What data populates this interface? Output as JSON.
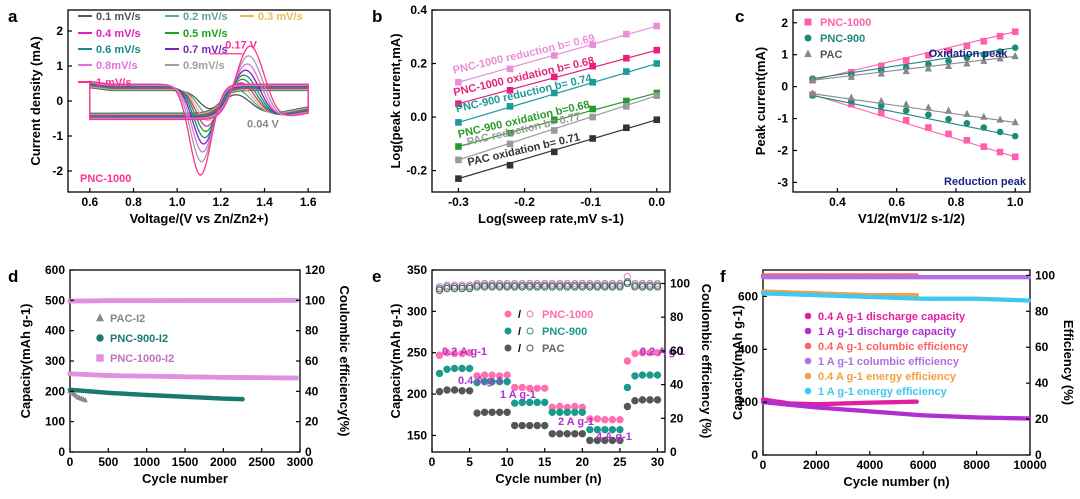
{
  "chart_data": [
    {
      "panel": "a",
      "type": "line",
      "subtype": "cyclic-voltammetry",
      "xlabel": "Voltage/(V vs Zn/Zn2+)",
      "ylabel": "Current density (mA)",
      "xlim": [
        0.5,
        1.7
      ],
      "ylim": [
        -2.6,
        2.6
      ],
      "xticks": [
        "0.6",
        "0.8",
        "1.0",
        "1.2",
        "1.4",
        "1.6"
      ],
      "yticks": [
        "-2",
        "-1",
        "0",
        "1",
        "2"
      ],
      "sample_label": "PNC-1000",
      "annotations": [
        "0.17 V",
        "0.04 V"
      ],
      "series": [
        {
          "name": "0.1 mV/s",
          "color": "#555555",
          "peak_ox": 0.18,
          "peak_red": -0.22
        },
        {
          "name": "0.2 mV/s",
          "color": "#5fa3a3",
          "peak_ox": 0.32,
          "peak_red": -0.42
        },
        {
          "name": "0.3 mV/s",
          "color": "#e0c050",
          "peak_ox": 0.45,
          "peak_red": -0.6
        },
        {
          "name": "0.4 mV/s",
          "color": "#e020c0",
          "peak_ox": 0.58,
          "peak_red": -0.78
        },
        {
          "name": "0.5 mV/s",
          "color": "#20a020",
          "peak_ox": 0.7,
          "peak_red": -0.95
        },
        {
          "name": "0.6 mV/s",
          "color": "#1a8a8a",
          "peak_ox": 0.84,
          "peak_red": -1.15
        },
        {
          "name": "0.7 mV/s",
          "color": "#8020c0",
          "peak_ox": 1.0,
          "peak_red": -1.35
        },
        {
          "name": "0.8mV/s",
          "color": "#e070e0",
          "peak_ox": 1.2,
          "peak_red": -1.6
        },
        {
          "name": "0.9mV/s",
          "color": "#a0a0a0",
          "peak_ox": 1.45,
          "peak_red": -1.9
        },
        {
          "name": "1 mV/s",
          "color": "#ff3090",
          "peak_ox": 1.75,
          "peak_red": -2.3
        }
      ]
    },
    {
      "panel": "b",
      "type": "scatter",
      "xlabel": "Log(sweep rate,mV s-1)",
      "ylabel": "Log(peak current,mA)",
      "xlim": [
        -0.34,
        0.02
      ],
      "ylim": [
        -0.28,
        0.4
      ],
      "xticks": [
        "-0.3",
        "-0.2",
        "-0.1",
        "0.0"
      ],
      "yticks": [
        "-0.2",
        "0.0",
        "0.2",
        "0.4"
      ],
      "x": [
        -0.3,
        -0.222,
        -0.155,
        -0.097,
        -0.046,
        0.0
      ],
      "series": [
        {
          "name": "PNC-1000 reduction b= 0.69",
          "color": "#e88fd8",
          "values": [
            0.13,
            0.18,
            0.23,
            0.27,
            0.31,
            0.34
          ]
        },
        {
          "name": "PNC-1000 oxidation b= 0.68",
          "color": "#e8207a",
          "values": [
            0.05,
            0.1,
            0.15,
            0.19,
            0.22,
            0.25
          ]
        },
        {
          "name": "PNC-900 reduction b= 0.74",
          "color": "#1a9a9a",
          "values": [
            -0.02,
            0.04,
            0.09,
            0.13,
            0.17,
            0.2
          ]
        },
        {
          "name": "PNC-900 oxidation b=0.68",
          "color": "#2a9a2a",
          "values": [
            -0.11,
            -0.06,
            -0.01,
            0.03,
            0.06,
            0.09
          ]
        },
        {
          "name": "PAC reduction b= 0.77",
          "color": "#9a9a9a",
          "values": [
            -0.16,
            -0.1,
            -0.05,
            0.0,
            0.04,
            0.08
          ]
        },
        {
          "name": "PAC oxidation b= 0.71",
          "color": "#333333",
          "values": [
            -0.23,
            -0.18,
            -0.13,
            -0.08,
            -0.04,
            -0.01
          ]
        }
      ]
    },
    {
      "panel": "c",
      "type": "scatter",
      "xlabel": "V1/2(mV1/2 s-1/2)",
      "ylabel": "Peak current(mA)",
      "xlim": [
        0.25,
        1.05
      ],
      "ylim": [
        -3.3,
        2.4
      ],
      "xticks": [
        "0.4",
        "0.6",
        "0.8",
        "1.0"
      ],
      "yticks": [
        "-3",
        "-2",
        "-1",
        "0",
        "1",
        "2"
      ],
      "x": [
        0.316,
        0.447,
        0.548,
        0.632,
        0.707,
        0.775,
        0.837,
        0.894,
        0.949,
        1.0
      ],
      "annotations": [
        "Oxidation peak",
        "Reduction peak"
      ],
      "series": [
        {
          "name": "PNC-1000",
          "color": "#ff5fae",
          "marker": "square",
          "ox": [
            0.2,
            0.45,
            0.65,
            0.82,
            0.98,
            1.12,
            1.28,
            1.42,
            1.58,
            1.72
          ],
          "red": [
            -0.25,
            -0.55,
            -0.82,
            -1.05,
            -1.28,
            -1.48,
            -1.68,
            -1.88,
            -2.05,
            -2.2
          ]
        },
        {
          "name": "PNC-900",
          "color": "#1a8a7a",
          "marker": "circle",
          "ox": [
            0.25,
            0.38,
            0.5,
            0.6,
            0.7,
            0.8,
            0.9,
            1.0,
            1.1,
            1.22
          ],
          "red": [
            -0.28,
            -0.45,
            -0.6,
            -0.75,
            -0.88,
            -1.02,
            -1.15,
            -1.28,
            -1.42,
            -1.55
          ]
        },
        {
          "name": "PAC",
          "color": "#888888",
          "marker": "triangle",
          "ox": [
            0.2,
            0.3,
            0.4,
            0.48,
            0.56,
            0.64,
            0.72,
            0.8,
            0.88,
            0.95
          ],
          "red": [
            -0.22,
            -0.35,
            -0.46,
            -0.56,
            -0.66,
            -0.76,
            -0.86,
            -0.95,
            -1.04,
            -1.12
          ]
        }
      ]
    },
    {
      "panel": "d",
      "type": "scatter",
      "xlabel": "Cycle number",
      "ylabel": "Capacity(mAh g-1)",
      "ylabel_right": "Coulombic efficiency(%)",
      "xlim": [
        0,
        3000
      ],
      "ylim": [
        0,
        600
      ],
      "ylim_right": [
        0,
        120
      ],
      "xticks": [
        "0",
        "500",
        "1000",
        "1500",
        "2000",
        "2500",
        "3000"
      ],
      "yticks": [
        "0",
        "100",
        "200",
        "300",
        "400",
        "500",
        "600"
      ],
      "yticks_right": [
        "0",
        "20",
        "40",
        "60",
        "80",
        "100",
        "120"
      ],
      "series": [
        {
          "name": "PAC-I2",
          "color": "#888888",
          "marker": "triangle",
          "cycles": [
            0,
            50,
            100,
            150,
            200
          ],
          "capacity": [
            200,
            190,
            180,
            175,
            170
          ]
        },
        {
          "name": "PNC-900-I2",
          "color": "#1a7a70",
          "marker": "circle",
          "cycles": [
            0,
            500,
            1000,
            1500,
            2000,
            2250
          ],
          "capacity": [
            205,
            195,
            188,
            182,
            176,
            174
          ]
        },
        {
          "name": "PNC-1000-I2",
          "color": "#e090e0",
          "marker": "square",
          "cycles": [
            0,
            500,
            1000,
            1500,
            2000,
            2500,
            2950
          ],
          "capacity": [
            258,
            252,
            250,
            248,
            246,
            245,
            244
          ]
        },
        {
          "name": "Coulombic efficiency",
          "color": "#e090e0",
          "axis": "right",
          "cycles": [
            0,
            500,
            1000,
            1500,
            2000,
            2500,
            2950
          ],
          "values": [
            99.5,
            99.8,
            99.8,
            99.9,
            99.9,
            99.9,
            100
          ]
        }
      ]
    },
    {
      "panel": "e",
      "type": "scatter",
      "xlabel": "Cycle number (n)",
      "ylabel": "Capacity(mAh g-1)",
      "ylabel_right": "Coulombic efficiency (%)",
      "xlim": [
        0,
        31
      ],
      "ylim": [
        130,
        350
      ],
      "ylim_right": [
        0,
        108
      ],
      "xticks": [
        "0",
        "5",
        "10",
        "15",
        "20",
        "25",
        "30"
      ],
      "yticks": [
        "150",
        "200",
        "250",
        "300",
        "350"
      ],
      "yticks_right": [
        "0",
        "20",
        "40",
        "60",
        "80",
        "100"
      ],
      "rate_labels": [
        "0.2 A g-1",
        "0.4 A g-1",
        "1 A g-1",
        "2 A g-1",
        "4 A g-1",
        "0.2 A g-1"
      ],
      "legend_separator": "/",
      "cycles": [
        1,
        2,
        3,
        4,
        5,
        6,
        7,
        8,
        9,
        10,
        11,
        12,
        13,
        14,
        15,
        16,
        17,
        18,
        19,
        20,
        21,
        22,
        23,
        24,
        25,
        26,
        27,
        28,
        29,
        30
      ],
      "series": [
        {
          "name": "PNC-1000",
          "color": "#ff70b0",
          "capacity": [
            247,
            250,
            249,
            249,
            250,
            222,
            223,
            223,
            222,
            223,
            208,
            208,
            207,
            207,
            207,
            184,
            185,
            184,
            185,
            184,
            170,
            170,
            169,
            169,
            169,
            240,
            249,
            250,
            250,
            250
          ],
          "ce": [
            98,
            99,
            99,
            99,
            99,
            100,
            100,
            100,
            100,
            100,
            100,
            100,
            100,
            100,
            100,
            100,
            100,
            100,
            100,
            100,
            100,
            100,
            100,
            100,
            100,
            104,
            100,
            100,
            100,
            100
          ]
        },
        {
          "name": "PNC-900",
          "color": "#1a9a8a",
          "capacity": [
            225,
            230,
            231,
            231,
            231,
            214,
            215,
            215,
            215,
            215,
            189,
            190,
            190,
            190,
            190,
            178,
            178,
            178,
            178,
            178,
            157,
            157,
            157,
            157,
            157,
            208,
            222,
            223,
            223,
            223
          ],
          "ce": [
            97,
            98,
            98,
            98,
            98,
            99,
            99,
            99,
            99,
            99,
            99,
            99,
            99,
            99,
            99,
            99,
            99,
            99,
            99,
            99,
            99,
            99,
            99,
            99,
            99,
            101,
            99,
            99,
            99,
            99
          ]
        },
        {
          "name": "PAC",
          "color": "#555555",
          "capacity": [
            203,
            205,
            205,
            204,
            204,
            177,
            178,
            178,
            178,
            178,
            162,
            162,
            162,
            162,
            162,
            152,
            152,
            152,
            152,
            152,
            144,
            144,
            144,
            144,
            144,
            185,
            192,
            193,
            193,
            193
          ],
          "ce": [
            96,
            97,
            97,
            97,
            97,
            98,
            98,
            98,
            98,
            98,
            98,
            98,
            98,
            98,
            98,
            98,
            98,
            98,
            98,
            98,
            98,
            98,
            98,
            98,
            98,
            100,
            98,
            98,
            98,
            98
          ]
        }
      ]
    },
    {
      "panel": "f",
      "type": "scatter",
      "xlabel": "Cycle number (n)",
      "ylabel": "Capacity(mAh g-1)",
      "ylabel_right": "Efficiency (%)",
      "xlim": [
        0,
        10000
      ],
      "ylim": [
        0,
        700
      ],
      "ylim_right": [
        0,
        103
      ],
      "xticks": [
        "0",
        "2000",
        "4000",
        "6000",
        "8000",
        "10000"
      ],
      "yticks": [
        "0",
        "200",
        "400",
        "600"
      ],
      "yticks_right": [
        "0",
        "20",
        "40",
        "60",
        "80",
        "100"
      ],
      "series": [
        {
          "name": "0.4 A g-1 discharge capacity",
          "color": "#e020a0",
          "axis": "left",
          "cycles": [
            0,
            1000,
            2000,
            3000,
            4000,
            5000,
            5800
          ],
          "values": [
            210,
            195,
            192,
            195,
            198,
            200,
            202
          ]
        },
        {
          "name": "1 A g-1 discharge capacity",
          "color": "#b030d0",
          "axis": "left",
          "cycles": [
            0,
            2000,
            4000,
            6000,
            8000,
            10000
          ],
          "values": [
            200,
            180,
            165,
            150,
            142,
            138
          ]
        },
        {
          "name": "0.4 A g-1 columbic efficiency",
          "color": "#ff6060",
          "axis": "right",
          "cycles": [
            0,
            2000,
            4000,
            5800
          ],
          "values": [
            100,
            100,
            100,
            100
          ]
        },
        {
          "name": "1 A g-1 columbic efficiency",
          "color": "#b070e0",
          "axis": "right",
          "cycles": [
            0,
            2000,
            4000,
            6000,
            8000,
            10000
          ],
          "values": [
            99,
            99,
            99,
            99,
            99,
            99
          ]
        },
        {
          "name": "0.4 A g-1 energy efficiency",
          "color": "#f0a040",
          "axis": "right",
          "cycles": [
            0,
            2000,
            4000,
            5800
          ],
          "values": [
            91,
            90,
            89,
            89
          ]
        },
        {
          "name": "1 A g-1 energy efficiency",
          "color": "#40c8f0",
          "axis": "right",
          "cycles": [
            0,
            2000,
            4000,
            6000,
            8000,
            10000
          ],
          "values": [
            90,
            89,
            88,
            87,
            87,
            86
          ]
        }
      ]
    }
  ]
}
